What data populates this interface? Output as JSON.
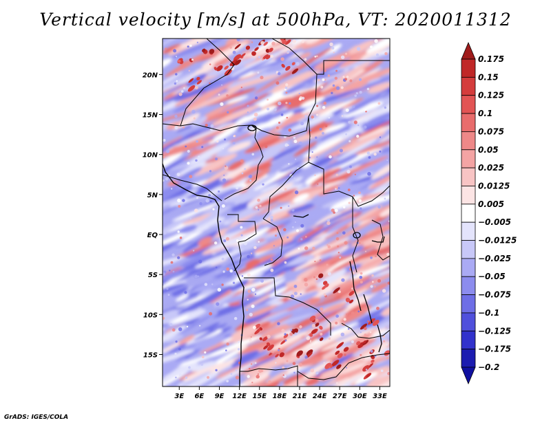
{
  "title": "Vertical velocity [m/s] at 500hPa, VT: 2020011312",
  "credit": "GrADS: IGES/COLA",
  "map": {
    "variable": "Vertical velocity",
    "units": "m/s",
    "level": "500hPa",
    "valid_time": "2020011312",
    "lat_range": [
      -19,
      24.5
    ],
    "lon_range": [
      0.5,
      34.5
    ],
    "lat_ticks": [
      {
        "value": 20,
        "label": "20N"
      },
      {
        "value": 15,
        "label": "15N"
      },
      {
        "value": 10,
        "label": "10N"
      },
      {
        "value": 5,
        "label": "5N"
      },
      {
        "value": 0,
        "label": "EQ"
      },
      {
        "value": -5,
        "label": "5S"
      },
      {
        "value": -10,
        "label": "10S"
      },
      {
        "value": -15,
        "label": "15S"
      }
    ],
    "lon_ticks": [
      {
        "value": 3,
        "label": "3E"
      },
      {
        "value": 6,
        "label": "6E"
      },
      {
        "value": 9,
        "label": "9E"
      },
      {
        "value": 12,
        "label": "12E"
      },
      {
        "value": 15,
        "label": "15E"
      },
      {
        "value": 18,
        "label": "18E"
      },
      {
        "value": 21,
        "label": "21E"
      },
      {
        "value": 24,
        "label": "24E"
      },
      {
        "value": 27,
        "label": "27E"
      },
      {
        "value": 30,
        "label": "30E"
      },
      {
        "value": 33,
        "label": "33E"
      }
    ]
  },
  "colorbar": {
    "labels": [
      "0.175",
      "0.15",
      "0.125",
      "0.1",
      "0.075",
      "0.05",
      "0.025",
      "0.0125",
      "0.005",
      "−0.005",
      "−0.0125",
      "−0.025",
      "−0.05",
      "−0.075",
      "−0.1",
      "−0.125",
      "−0.175",
      "−0.2"
    ],
    "colors": [
      "#a01c1c",
      "#c02828",
      "#d43c3c",
      "#e25454",
      "#e86c6c",
      "#ee8888",
      "#f4a4a4",
      "#f8c4c4",
      "#fce4e4",
      "#ffffff",
      "#e4e4fc",
      "#c8c8f8",
      "#aaaaf4",
      "#8c8cee",
      "#6e6ee6",
      "#5050dc",
      "#3232cc",
      "#1c1cb0",
      "#1010a0"
    ]
  }
}
